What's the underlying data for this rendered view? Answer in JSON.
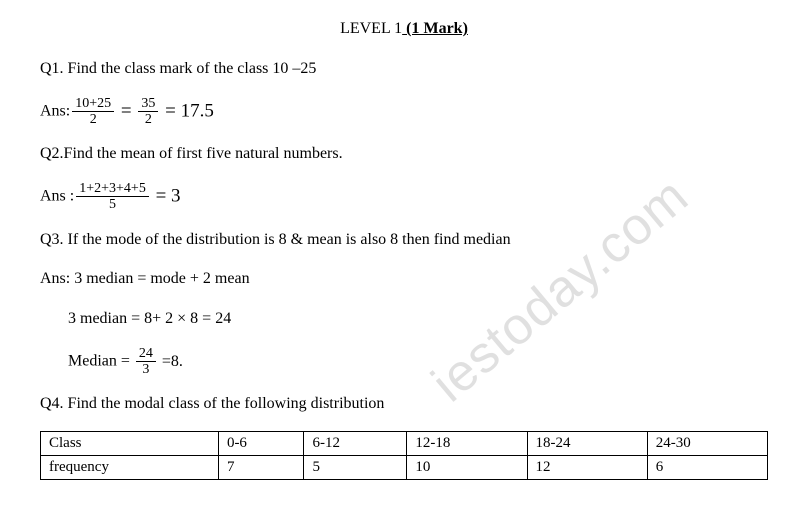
{
  "title": {
    "level": "LEVEL  1",
    "mark": " (1 Mark)"
  },
  "q1": {
    "prompt": "Q1.   Find the class mark of the class  10 –25",
    "ans_label": "Ans:",
    "frac1_num": "10+25",
    "frac1_den": "2",
    "eq1": " = ",
    "frac2_num": "35",
    "frac2_den": "2",
    "eq2": " = 17.5"
  },
  "q2": {
    "prompt": "Q2.Find the mean of first five natural numbers.",
    "ans_label": "Ans  :",
    "frac_num": "1+2+3+4+5",
    "frac_den": "5",
    "eq": " = 3"
  },
  "q3": {
    "prompt": "Q3. If the mode of the distribution is 8  & mean is also 8  then find  median",
    "ans1": "Ans: 3 median = mode + 2 mean",
    "ans2": "3 median = 8+ 2 × 8 = 24",
    "ans3_label": "Median = ",
    "frac_num": "24",
    "frac_den": "3",
    "ans3_tail": "  =8."
  },
  "q4": {
    "prompt": "Q4. Find the modal class  of the following distribution",
    "table": {
      "row1": [
        "Class",
        "0-6",
        "6-12",
        "12-18",
        "18-24",
        "24-30"
      ],
      "row2": [
        "frequency",
        "7",
        "5",
        "10",
        "12",
        "6"
      ]
    }
  },
  "watermark": "iestoday.com"
}
